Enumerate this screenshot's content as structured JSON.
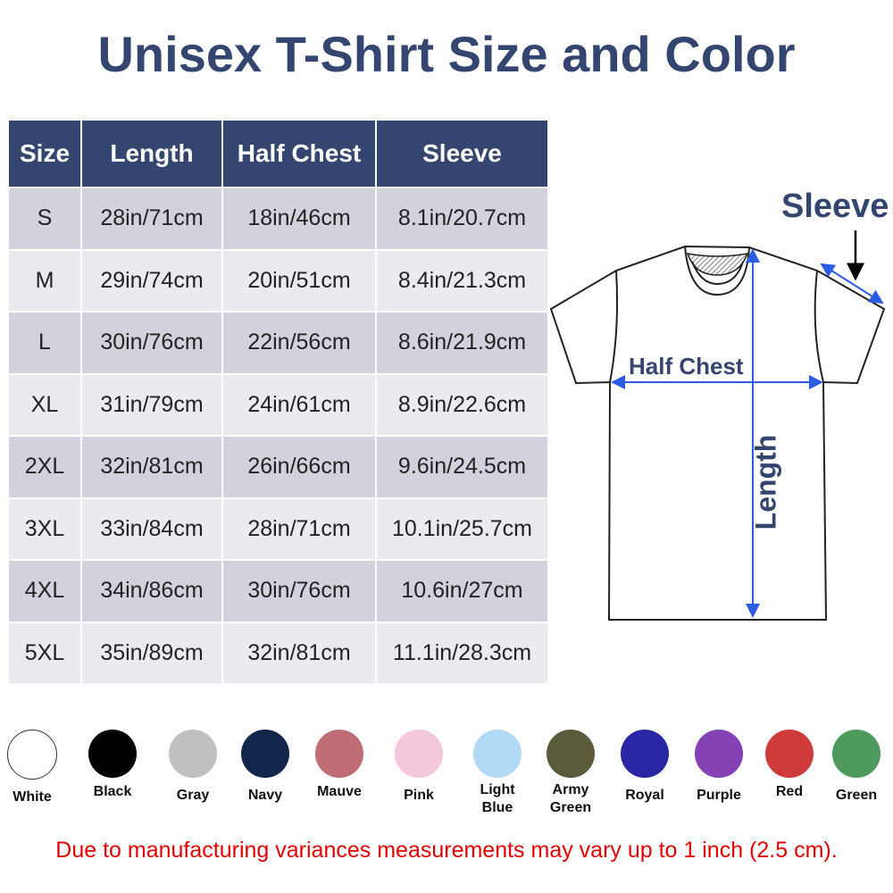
{
  "title": "Unisex T-Shirt Size and Color",
  "table": {
    "headers": [
      "Size",
      "Length",
      "Half Chest",
      "Sleeve"
    ],
    "rows": [
      [
        "S",
        "28in/71cm",
        "18in/46cm",
        "8.1in/20.7cm"
      ],
      [
        "M",
        "29in/74cm",
        "20in/51cm",
        "8.4in/21.3cm"
      ],
      [
        "L",
        "30in/76cm",
        "22in/56cm",
        "8.6in/21.9cm"
      ],
      [
        "XL",
        "31in/79cm",
        "24in/61cm",
        "8.9in/22.6cm"
      ],
      [
        "2XL",
        "32in/81cm",
        "26in/66cm",
        "9.6in/24.5cm"
      ],
      [
        "3XL",
        "33in/84cm",
        "28in/71cm",
        "10.1in/25.7cm"
      ],
      [
        "4XL",
        "34in/86cm",
        "30in/76cm",
        "10.6in/27cm"
      ],
      [
        "5XL",
        "35in/89cm",
        "32in/81cm",
        "11.1in/28.3cm"
      ]
    ]
  },
  "diagram": {
    "sleeve": "Sleeve",
    "half_chest": "Half Chest",
    "length": "Length"
  },
  "colors": [
    {
      "name": "White",
      "hex": "#ffffff"
    },
    {
      "name": "Black",
      "hex": "#000000"
    },
    {
      "name": "Gray",
      "hex": "#c0c0c0"
    },
    {
      "name": "Navy",
      "hex": "#12254a"
    },
    {
      "name": "Mauve",
      "hex": "#c06c74"
    },
    {
      "name": "Pink",
      "hex": "#f3c7dc"
    },
    {
      "name": "Light Blue",
      "hex": "#b3daf4"
    },
    {
      "name": "Army Green",
      "hex": "#5b5a3b"
    },
    {
      "name": "Royal",
      "hex": "#2b27a4"
    },
    {
      "name": "Purple",
      "hex": "#8442b4"
    },
    {
      "name": "Red",
      "hex": "#cf3a3a"
    },
    {
      "name": "Green",
      "hex": "#4e9a5c"
    }
  ],
  "note": "Due to manufacturing variances measurements may vary up to 1 inch (2.5 cm)."
}
